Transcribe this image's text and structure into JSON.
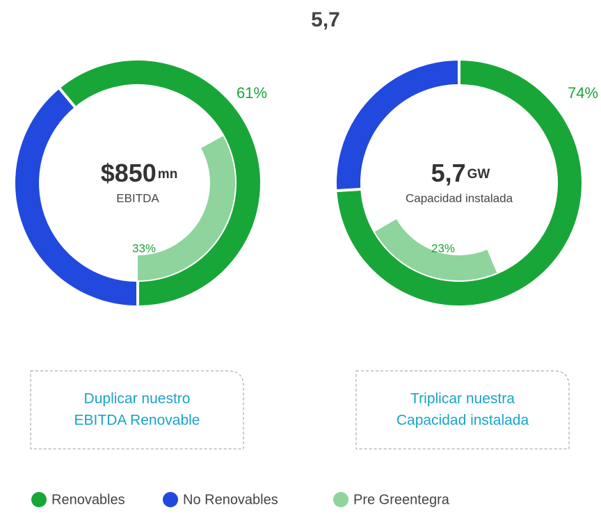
{
  "title": "5,7",
  "chart_data": [
    {
      "type": "donut",
      "center_value": "$850",
      "center_unit": "mn",
      "center_label": "EBITDA",
      "series": [
        {
          "name": "Renovables",
          "color": "#19a639",
          "values": [
            61
          ],
          "value_labels": [
            "61%"
          ]
        },
        {
          "name": "No Renovables",
          "color": "#2249de",
          "values": [
            39
          ]
        },
        {
          "name": "Pre Greentegra",
          "color": "#8ed49c",
          "values": [
            33
          ],
          "value_labels": [
            "33%"
          ],
          "ring": "inner"
        }
      ],
      "annotation": [
        "Duplicar nuestro",
        "EBITDA Renovable"
      ]
    },
    {
      "type": "donut",
      "center_value": "5,7",
      "center_unit": "GW",
      "center_label": "Capacidad instalada",
      "series": [
        {
          "name": "Renovables",
          "color": "#19a639",
          "values": [
            74
          ],
          "value_labels": [
            "74%"
          ]
        },
        {
          "name": "No Renovables",
          "color": "#2249de",
          "values": [
            26
          ]
        },
        {
          "name": "Pre Greentegra",
          "color": "#8ed49c",
          "values": [
            23
          ],
          "value_labels": [
            "23%"
          ],
          "ring": "inner"
        }
      ],
      "annotation": [
        "Triplicar nuestra",
        "Capacidad instalada"
      ]
    }
  ]
}
